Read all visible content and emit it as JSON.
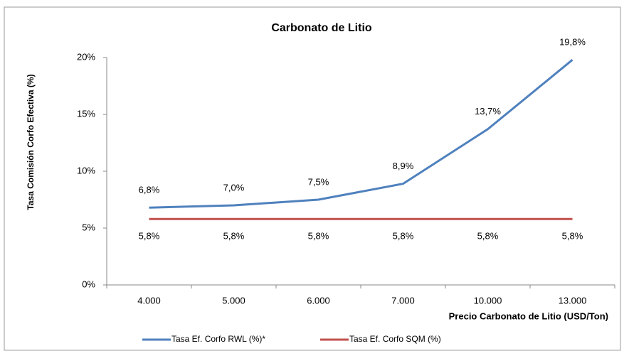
{
  "chart_data": {
    "type": "line",
    "title": "Carbonato de Litio",
    "x_label": "Precio Carbonato de Litio (USD/Ton)",
    "y_label": "Tasa Comisión Corfo Efectiva (%)",
    "categories": [
      "4.000",
      "5.000",
      "6.000",
      "7.000",
      "10.000",
      "13.000"
    ],
    "series": [
      {
        "name": "Tasa Ef. Corfo RWL (%)*",
        "color": "#4f81bd",
        "values": [
          6.8,
          7.0,
          7.5,
          8.9,
          13.7,
          19.8
        ],
        "value_labels": [
          "6,8%",
          "7,0%",
          "7,5%",
          "8,9%",
          "13,7%",
          "19,8%"
        ]
      },
      {
        "name": "Tasa Ef. Corfo SQM (%)",
        "color": "#c0504d",
        "values": [
          5.8,
          5.8,
          5.8,
          5.8,
          5.8,
          5.8
        ],
        "value_labels": [
          "5,8%",
          "5,8%",
          "5,8%",
          "5,8%",
          "5,8%",
          "5,8%"
        ]
      }
    ],
    "ylim": [
      0,
      20
    ],
    "yticks": [
      {
        "value": 0,
        "label": "0%"
      },
      {
        "value": 5,
        "label": "5%"
      },
      {
        "value": 10,
        "label": "10%"
      },
      {
        "value": 15,
        "label": "15%"
      },
      {
        "value": 20,
        "label": "20%"
      }
    ],
    "grid": false,
    "legend": "bottom"
  }
}
